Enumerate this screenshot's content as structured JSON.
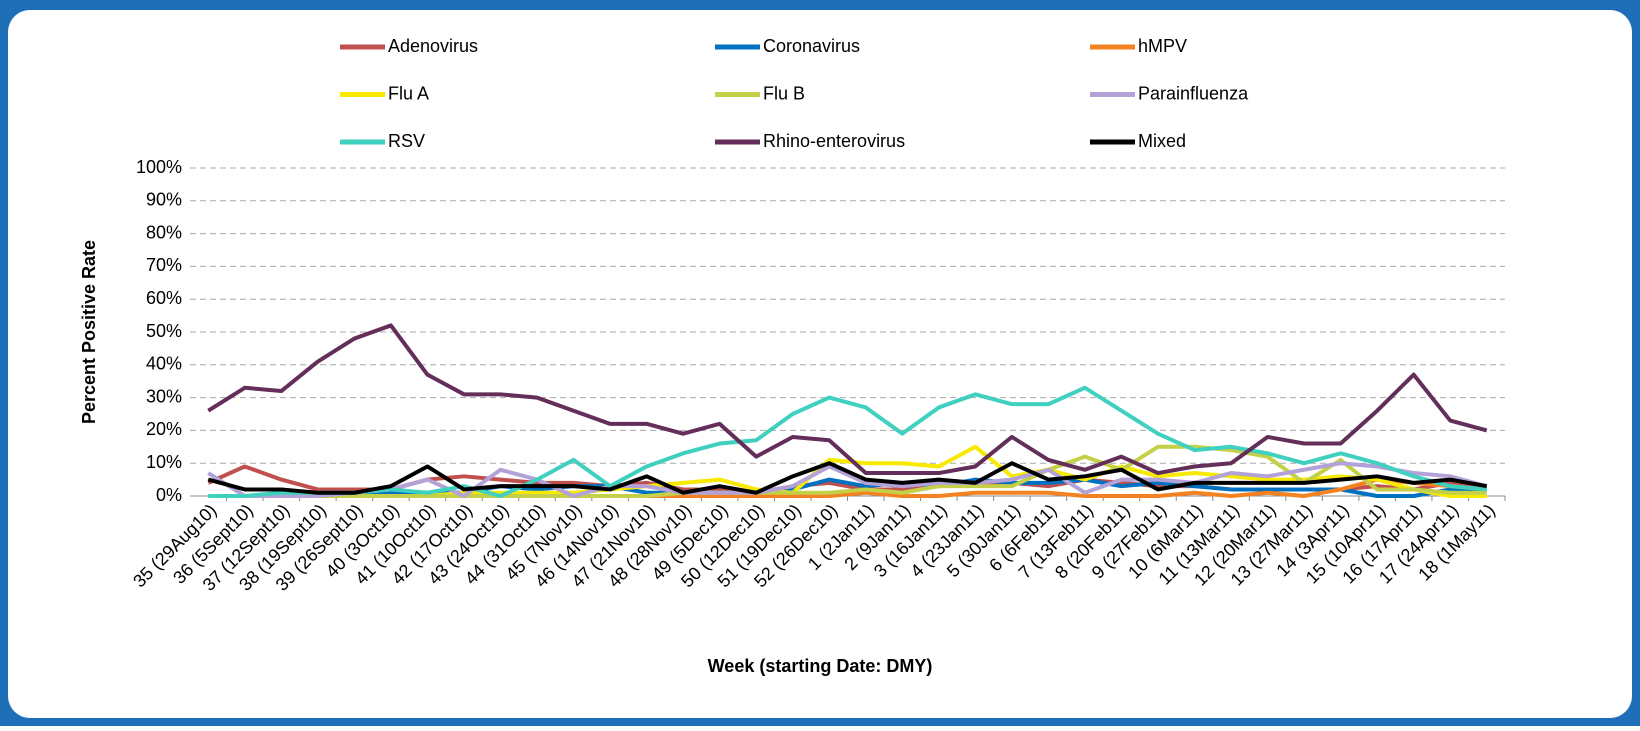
{
  "chart_data": {
    "type": "line",
    "x_label": "Week (starting Date: DMY)",
    "y_label": "Percent Positive Rate",
    "categories": [
      "35 (29Aug10)",
      "36 (5Sept10)",
      "37 (12Sept10)",
      "38 (19Sept10)",
      "39 (26Sept10)",
      "40 (3Oct10)",
      "41 (10Oct10)",
      "42 (17Oct10)",
      "43 (24Oct10)",
      "44 (31Oct10)",
      "45 (7Nov10)",
      "46 (14Nov10)",
      "47 (21Nov10)",
      "48 (28Nov10)",
      "49 (5Dec10)",
      "50 (12Dec10)",
      "51 (19Dec10)",
      "52 (26Dec10)",
      "1 (2Jan11)",
      "2 (9Jan11)",
      "3 (16Jan11)",
      "4 (23Jan11)",
      "5 (30Jan11)",
      "6 (6Feb11)",
      "7 (13Feb11)",
      "8 (20Feb11)",
      "9 (27Feb11)",
      "10 (6Mar11)",
      "11 (13Mar11)",
      "12 (20Mar11)",
      "13 (27Mar11)",
      "14 (3Apr11)",
      "15 (10Apr11)",
      "16 (17Apr11)",
      "17 (24Apr11)",
      "18 (1May11)"
    ],
    "series": [
      {
        "name": "Adenovirus",
        "color": "#c0504d",
        "values": [
          4,
          9,
          5,
          2,
          2,
          2,
          5,
          6,
          5,
          4,
          4,
          3,
          4,
          2,
          2,
          1,
          3,
          4,
          2,
          2,
          3,
          4,
          4,
          3,
          5,
          4,
          3,
          3,
          2,
          2,
          2,
          2,
          3,
          2,
          4,
          3
        ]
      },
      {
        "name": "Coronavirus",
        "color": "#0070c0",
        "values": [
          0,
          0,
          0,
          0,
          0,
          1,
          1,
          1,
          3,
          2,
          3,
          3,
          1,
          1,
          1,
          1,
          2,
          5,
          3,
          4,
          3,
          5,
          4,
          4,
          5,
          3,
          4,
          3,
          2,
          2,
          2,
          2,
          0,
          0,
          2,
          2
        ]
      },
      {
        "name": "hMPV",
        "color": "#f58220",
        "values": [
          0,
          0,
          0,
          0,
          0,
          0,
          0,
          0,
          0,
          0,
          0,
          0,
          0,
          0,
          0,
          0,
          0,
          0,
          1,
          0,
          0,
          1,
          1,
          1,
          0,
          0,
          0,
          1,
          0,
          1,
          0,
          2,
          5,
          4,
          3,
          2
        ]
      },
      {
        "name": "Flu A",
        "color": "#f7ea00",
        "values": [
          0,
          0,
          0,
          0,
          0,
          0,
          0,
          1,
          1,
          1,
          1,
          2,
          3,
          4,
          5,
          2,
          1,
          11,
          10,
          10,
          9,
          15,
          6,
          8,
          5,
          9,
          6,
          7,
          6,
          5,
          5,
          6,
          5,
          2,
          0,
          0
        ]
      },
      {
        "name": "Flu B",
        "color": "#c4d048",
        "values": [
          0,
          0,
          0,
          0,
          0,
          0,
          0,
          0,
          0,
          0,
          0,
          0,
          0,
          1,
          1,
          1,
          1,
          1,
          2,
          1,
          3,
          3,
          3,
          8,
          12,
          8,
          15,
          15,
          14,
          12,
          4,
          11,
          2,
          2,
          1,
          1
        ]
      },
      {
        "name": "Parainfluenza",
        "color": "#b3a2d8",
        "values": [
          7,
          0,
          0,
          0,
          1,
          2,
          5,
          0,
          8,
          5,
          0,
          3,
          3,
          1,
          1,
          1,
          3,
          9,
          4,
          3,
          4,
          4,
          5,
          8,
          1,
          5,
          5,
          4,
          7,
          6,
          8,
          10,
          9,
          7,
          6,
          3
        ]
      },
      {
        "name": "RSV",
        "color": "#40d0c0",
        "values": [
          0,
          0,
          1,
          1,
          1,
          2,
          1,
          3,
          0,
          5,
          11,
          3,
          9,
          13,
          16,
          17,
          25,
          30,
          27,
          19,
          27,
          31,
          28,
          28,
          33,
          26,
          19,
          14,
          15,
          13,
          10,
          13,
          10,
          6,
          3,
          2
        ]
      },
      {
        "name": "Rhino-enterovirus",
        "color": "#632e5a",
        "values": [
          26,
          33,
          32,
          41,
          48,
          52,
          37,
          31,
          31,
          30,
          26,
          22,
          22,
          19,
          22,
          12,
          18,
          17,
          7,
          7,
          7,
          9,
          18,
          11,
          8,
          12,
          7,
          9,
          10,
          18,
          16,
          16,
          26,
          37,
          23,
          20
        ]
      },
      {
        "name": "Mixed",
        "color": "#000000",
        "values": [
          5,
          2,
          2,
          1,
          1,
          3,
          9,
          2,
          3,
          3,
          3,
          2,
          6,
          1,
          3,
          1,
          6,
          10,
          5,
          4,
          5,
          4,
          10,
          5,
          6,
          8,
          2,
          4,
          4,
          4,
          4,
          5,
          6,
          4,
          5,
          3
        ]
      }
    ],
    "ylim": [
      0,
      100
    ],
    "yticks": [
      {
        "value": 0,
        "label": "0%"
      },
      {
        "value": 10,
        "label": "10%"
      },
      {
        "value": 20,
        "label": "20%"
      },
      {
        "value": 30,
        "label": "30%"
      },
      {
        "value": 40,
        "label": "40%"
      },
      {
        "value": 50,
        "label": "50%"
      },
      {
        "value": 60,
        "label": "60%"
      },
      {
        "value": 70,
        "label": "70%"
      },
      {
        "value": 80,
        "label": "80%"
      },
      {
        "value": 90,
        "label": "90%"
      },
      {
        "value": 100,
        "label": "100%"
      }
    ],
    "grid": true
  }
}
